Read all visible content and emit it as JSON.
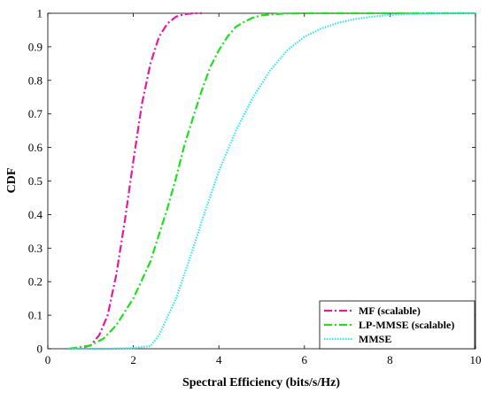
{
  "chart_data": {
    "type": "line",
    "xlabel": "Spectral Efficiency (bits/s/Hz)",
    "ylabel": "CDF",
    "xlim": [
      0,
      10
    ],
    "ylim": [
      0,
      1
    ],
    "xticks": [
      "0",
      "2",
      "4",
      "6",
      "8",
      "10"
    ],
    "yticks": [
      "0",
      "0.1",
      "0.2",
      "0.3",
      "0.4",
      "0.5",
      "0.6",
      "0.7",
      "0.8",
      "0.9",
      "1"
    ],
    "grid": false,
    "legend_position": "bottom-right",
    "series": [
      {
        "name": "MF (scalable)",
        "color": "#e6199f",
        "dash": "dash-dot",
        "x": [
          0.5,
          0.8,
          1.0,
          1.2,
          1.4,
          1.6,
          1.8,
          2.0,
          2.2,
          2.4,
          2.6,
          2.8,
          3.0,
          3.2,
          3.4,
          3.6
        ],
        "y": [
          0.0,
          0.003,
          0.01,
          0.04,
          0.1,
          0.22,
          0.38,
          0.56,
          0.73,
          0.85,
          0.93,
          0.97,
          0.99,
          0.997,
          1.0,
          1.0
        ]
      },
      {
        "name": "LP-MMSE (scalable)",
        "color": "#1ee01e",
        "dash": "dash-dot",
        "x": [
          0.5,
          1.0,
          1.3,
          1.6,
          2.0,
          2.4,
          2.8,
          3.0,
          3.2,
          3.4,
          3.6,
          3.8,
          4.0,
          4.2,
          4.4,
          4.6,
          4.8,
          5.0,
          5.5,
          6.0,
          7.0,
          8.0,
          9.0,
          10.0
        ],
        "y": [
          0.0,
          0.01,
          0.03,
          0.07,
          0.15,
          0.26,
          0.42,
          0.51,
          0.61,
          0.69,
          0.77,
          0.84,
          0.89,
          0.93,
          0.96,
          0.975,
          0.987,
          0.994,
          0.999,
          1.0,
          1.0,
          1.0,
          1.0,
          1.0
        ]
      },
      {
        "name": "MMSE",
        "color": "#33e6f2",
        "dash": "dotted",
        "x": [
          0.5,
          1.0,
          1.5,
          2.0,
          2.4,
          2.6,
          3.0,
          3.4,
          3.6,
          4.0,
          4.4,
          4.8,
          5.2,
          5.6,
          6.0,
          6.4,
          6.8,
          7.2,
          7.6,
          8.0,
          8.5,
          9.0,
          9.5,
          10.0
        ],
        "y": [
          0.0,
          0.0,
          0.0,
          0.002,
          0.008,
          0.04,
          0.15,
          0.3,
          0.38,
          0.53,
          0.65,
          0.75,
          0.83,
          0.89,
          0.93,
          0.955,
          0.972,
          0.983,
          0.99,
          0.995,
          0.998,
          0.999,
          1.0,
          1.0
        ]
      }
    ]
  }
}
